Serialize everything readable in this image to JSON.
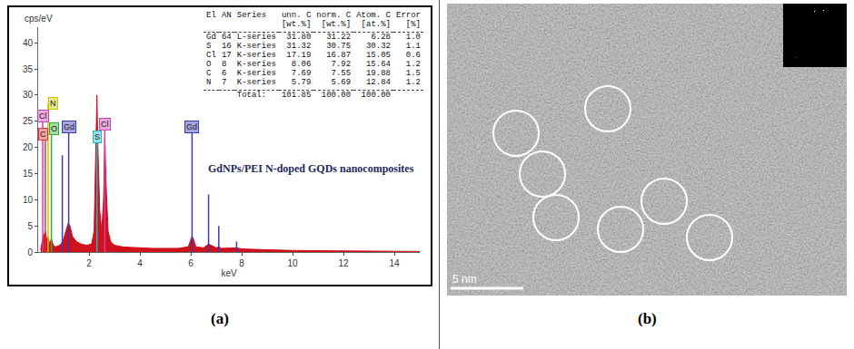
{
  "chart_data": {
    "type": "spectrum",
    "y_label": "cps/eV",
    "x_label": "keV",
    "xlim": [
      0,
      15
    ],
    "xticks": [
      2,
      4,
      6,
      8,
      10,
      12,
      14
    ],
    "ylim": [
      0,
      43
    ],
    "yticks": [
      0,
      5,
      10,
      15,
      20,
      25,
      30,
      35,
      40
    ],
    "grid": false,
    "series": [
      {
        "type": "area",
        "color": "#d0101a",
        "x": [
          0.1,
          0.2,
          0.25,
          0.28,
          0.33,
          0.39,
          0.45,
          0.52,
          0.6,
          0.7,
          0.8,
          0.9,
          1.0,
          1.1,
          1.18,
          1.25,
          1.35,
          1.5,
          1.7,
          1.9,
          2.1,
          2.2,
          2.27,
          2.31,
          2.35,
          2.42,
          2.5,
          2.57,
          2.62,
          2.67,
          2.75,
          2.85,
          3.0,
          3.3,
          3.6,
          4.0,
          4.5,
          5.0,
          5.5,
          5.9,
          6.0,
          6.05,
          6.1,
          6.2,
          6.5,
          6.7,
          6.8,
          7.0,
          7.1,
          7.2,
          7.8,
          8.0,
          8.5,
          9.0,
          10.0,
          11.0,
          12.0,
          13.0,
          14.0,
          15.0
        ],
        "values": [
          0.5,
          3,
          3.5,
          4,
          2.5,
          3,
          1.5,
          2.5,
          1.2,
          1,
          1.2,
          1.5,
          2.5,
          4,
          5.5,
          5,
          3,
          2,
          1.5,
          1.3,
          1.5,
          4,
          18,
          30,
          20,
          8,
          4,
          10,
          22,
          13,
          4,
          2,
          1.3,
          1,
          0.9,
          0.8,
          0.7,
          0.7,
          0.7,
          1,
          2.5,
          3,
          2.5,
          1,
          0.8,
          1.5,
          1.3,
          0.8,
          1,
          0.7,
          0.8,
          0.6,
          0.5,
          0.4,
          0.3,
          0.25,
          0.2,
          0.15,
          0.1,
          0.1
        ]
      },
      {
        "name": "Gd",
        "type": "stem",
        "color": "#3a3ab8",
        "x": [
          0.95,
          1.2,
          6.05,
          6.7,
          7.1,
          7.8
        ],
        "values": [
          18.5,
          24,
          24,
          11,
          5,
          2
        ],
        "labels": [
          {
            "x": 1.2,
            "y": 24
          },
          {
            "x": 6.05,
            "y": 24
          }
        ]
      },
      {
        "name": "S",
        "type": "stem",
        "color": "#20b8c8",
        "x": [
          2.31
        ],
        "values": [
          22
        ],
        "labels": [
          {
            "x": 2.31,
            "y": 22
          }
        ]
      },
      {
        "name": "Cl",
        "type": "stem",
        "color": "#d040b0",
        "x": [
          0.18,
          2.62
        ],
        "values": [
          26,
          24.5
        ],
        "labels": [
          {
            "x": 0.2,
            "y": 26
          },
          {
            "x": 2.62,
            "y": 24.5
          }
        ]
      },
      {
        "name": "C",
        "type": "stem",
        "color": "#e03030",
        "x": [
          0.28
        ],
        "values": [
          22.5
        ],
        "labels": [
          {
            "x": 0.2,
            "y": 22.5
          }
        ]
      },
      {
        "name": "O",
        "type": "stem",
        "color": "#30b030",
        "x": [
          0.52
        ],
        "values": [
          23.5
        ],
        "labels": [
          {
            "x": 0.62,
            "y": 23.5
          }
        ]
      },
      {
        "name": "N",
        "type": "stem",
        "color": "#c8c800",
        "x": [
          0.39
        ],
        "values": [
          28.5
        ],
        "labels": [
          {
            "x": 0.6,
            "y": 28.5
          }
        ]
      }
    ],
    "annotations": [
      {
        "text": "GdNPs/PEI N-doped GQDs nanocomposites",
        "x": 6.6,
        "y": 16
      }
    ],
    "table": {
      "header": [
        "El",
        "AN",
        "Series",
        "unn. C",
        "norm. C",
        "Atom. C",
        "Error"
      ],
      "units": {
        "unn. C": "[wt.%]",
        "norm. C": "[wt.%]",
        "Atom. C": "[at.%]",
        "Error": "[%]"
      },
      "rows": [
        [
          "Gd",
          "64",
          "L-series",
          "31.80",
          "31.22",
          "6.28",
          "1.0"
        ],
        [
          "S",
          "16",
          "K-series",
          "31.32",
          "30.75",
          "30.32",
          "1.1"
        ],
        [
          "Cl",
          "17",
          "K-series",
          "17.19",
          "16.87",
          "15.05",
          "0.6"
        ],
        [
          "O",
          "8",
          "K-series",
          "8.06",
          "7.92",
          "15.64",
          "1.2"
        ],
        [
          "C",
          "6",
          "K-series",
          "7.69",
          "7.55",
          "19.88",
          "1.5"
        ],
        [
          "N",
          "7",
          "K-series",
          "5.79",
          "5.69",
          "12.84",
          "1.2"
        ]
      ],
      "total": {
        "label": "Total:",
        "values": [
          "101.85",
          "100.00",
          "100.00"
        ]
      }
    }
  },
  "image": {
    "scale_bar": "5 nm"
  },
  "panel_labels": [
    "(a)",
    "(b)"
  ]
}
